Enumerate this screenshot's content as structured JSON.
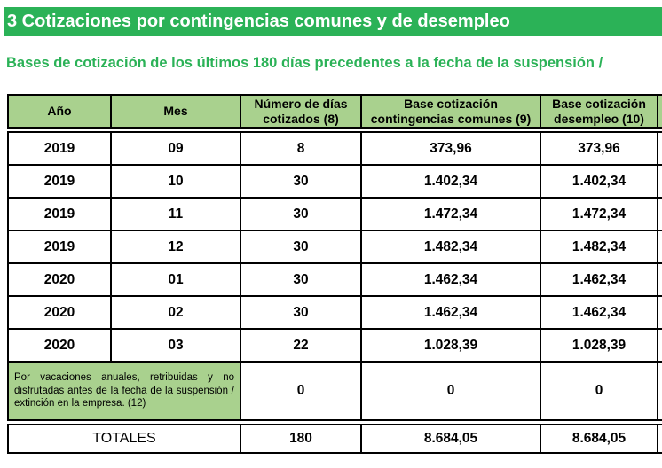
{
  "section_title": "3 Cotizaciones por contingencias comunes y de desempleo",
  "subtitle": "Bases de cotización de los últimos 180 días precedentes a la fecha de la suspensión /",
  "headers": {
    "year": "Año",
    "month": "Mes",
    "days": [
      "Número de días",
      "cotizados (8)"
    ],
    "base_common": [
      "Base cotización",
      "contingencias comunes (9)"
    ],
    "base_unemployment": [
      "Base cotización",
      "desempleo (10)"
    ]
  },
  "rows": [
    {
      "year": "2019",
      "month": "09",
      "days": "8",
      "base_common": "373,96",
      "base_unemployment": "373,96"
    },
    {
      "year": "2019",
      "month": "10",
      "days": "30",
      "base_common": "1.402,34",
      "base_unemployment": "1.402,34"
    },
    {
      "year": "2019",
      "month": "11",
      "days": "30",
      "base_common": "1.472,34",
      "base_unemployment": "1.472,34"
    },
    {
      "year": "2019",
      "month": "12",
      "days": "30",
      "base_common": "1.482,34",
      "base_unemployment": "1.482,34"
    },
    {
      "year": "2020",
      "month": "01",
      "days": "30",
      "base_common": "1.462,34",
      "base_unemployment": "1.462,34"
    },
    {
      "year": "2020",
      "month": "02",
      "days": "30",
      "base_common": "1.462,34",
      "base_unemployment": "1.462,34"
    },
    {
      "year": "2020",
      "month": "03",
      "days": "22",
      "base_common": "1.028,39",
      "base_unemployment": "1.028,39"
    }
  ],
  "vacation_row": {
    "label": "Por vacaciones anuales, retribuidas y no disfrutadas antes de la fecha de la suspensión / extinción en la empresa. (12)",
    "days": "0",
    "base_common": "0",
    "base_unemployment": "0"
  },
  "totals": {
    "label": "TOTALES",
    "days": "180",
    "base_common": "8.684,05",
    "base_unemployment": "8.684,05"
  },
  "colors": {
    "accent_green": "#2bb257",
    "header_fill": "#a9d18e"
  }
}
